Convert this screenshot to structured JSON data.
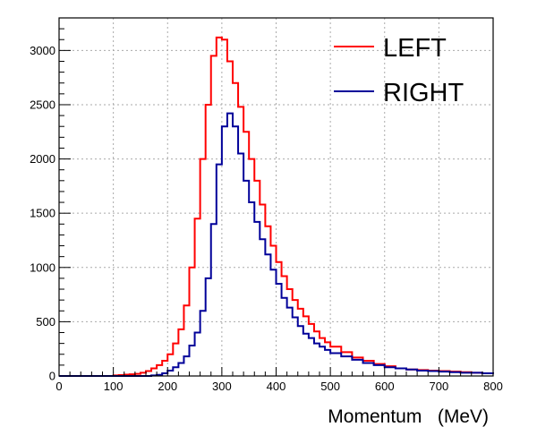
{
  "chart_data": {
    "type": "line",
    "style": "step-histogram",
    "xlabel": "Momentum   (MeV)",
    "ylabel": "",
    "xlim": [
      0,
      800
    ],
    "ylim": [
      0,
      3300
    ],
    "x_ticks": [
      "0",
      "100",
      "200",
      "300",
      "400",
      "500",
      "600",
      "700",
      "800"
    ],
    "y_ticks": [
      "0",
      "500",
      "1000",
      "1500",
      "2000",
      "2500",
      "3000"
    ],
    "grid": true,
    "legend_position": "top-right",
    "x": [
      0,
      10,
      20,
      30,
      40,
      50,
      60,
      70,
      80,
      90,
      100,
      110,
      120,
      130,
      140,
      150,
      160,
      170,
      180,
      190,
      200,
      210,
      220,
      230,
      240,
      250,
      260,
      270,
      280,
      290,
      300,
      310,
      320,
      330,
      340,
      350,
      360,
      370,
      380,
      390,
      400,
      410,
      420,
      430,
      440,
      450,
      460,
      470,
      480,
      490,
      500,
      520,
      540,
      560,
      580,
      600,
      620,
      640,
      660,
      680,
      700,
      720,
      740,
      760,
      780,
      800
    ],
    "series": [
      {
        "name": "LEFT",
        "color": "#ff0000",
        "values": [
          0,
          0,
          0,
          0,
          0,
          0,
          0,
          0,
          0,
          0,
          5,
          8,
          12,
          15,
          20,
          30,
          45,
          70,
          100,
          140,
          200,
          300,
          430,
          650,
          1000,
          1450,
          2000,
          2500,
          2950,
          3120,
          3100,
          2900,
          2700,
          2480,
          2250,
          2000,
          1800,
          1580,
          1380,
          1200,
          1050,
          920,
          800,
          700,
          620,
          550,
          480,
          410,
          350,
          310,
          270,
          220,
          170,
          140,
          110,
          90,
          70,
          60,
          55,
          50,
          45,
          40,
          35,
          30,
          25,
          22
        ]
      },
      {
        "name": "RIGHT",
        "color": "#000099",
        "values": [
          0,
          0,
          0,
          0,
          0,
          0,
          0,
          0,
          0,
          0,
          0,
          0,
          0,
          0,
          0,
          0,
          0,
          5,
          10,
          25,
          50,
          80,
          120,
          180,
          280,
          400,
          600,
          900,
          1400,
          1950,
          2300,
          2420,
          2300,
          2050,
          1800,
          1600,
          1420,
          1260,
          1120,
          980,
          850,
          720,
          630,
          540,
          460,
          390,
          350,
          300,
          270,
          240,
          210,
          180,
          150,
          120,
          100,
          80,
          70,
          60,
          50,
          45,
          40,
          35,
          30,
          30,
          25,
          20
        ]
      }
    ]
  }
}
